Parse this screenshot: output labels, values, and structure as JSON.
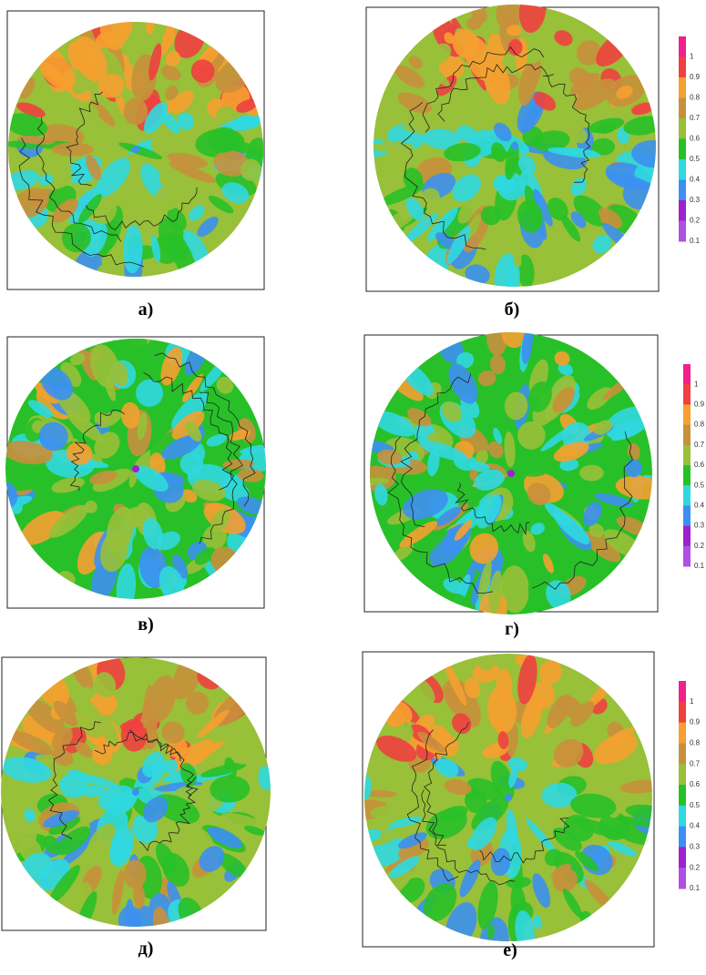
{
  "panels": [
    {
      "label": "а)"
    },
    {
      "label": "б)"
    },
    {
      "label": "в)"
    },
    {
      "label": "г)"
    },
    {
      "label": "д)"
    },
    {
      "label": "е)"
    }
  ],
  "colorbars": [
    {
      "ticks": [
        1,
        0.9,
        0.8,
        0.7,
        0.6,
        0.5,
        0.4,
        0.3,
        0.2,
        0.1
      ]
    },
    {
      "ticks": [
        1,
        0.9,
        0.8,
        0.7,
        0.6,
        0.5,
        0.4,
        0.3,
        0.2,
        0.1
      ]
    },
    {
      "ticks": [
        1,
        0.9,
        0.8,
        0.7,
        0.6,
        0.5,
        0.4,
        0.3,
        0.2,
        0.1
      ]
    }
  ],
  "palette": [
    "#f0208c",
    "#f04040",
    "#f5a030",
    "#c8903c",
    "#98c038",
    "#28c028",
    "#30d8e0",
    "#3c90f0",
    "#a020d0",
    "#b050e0"
  ]
}
